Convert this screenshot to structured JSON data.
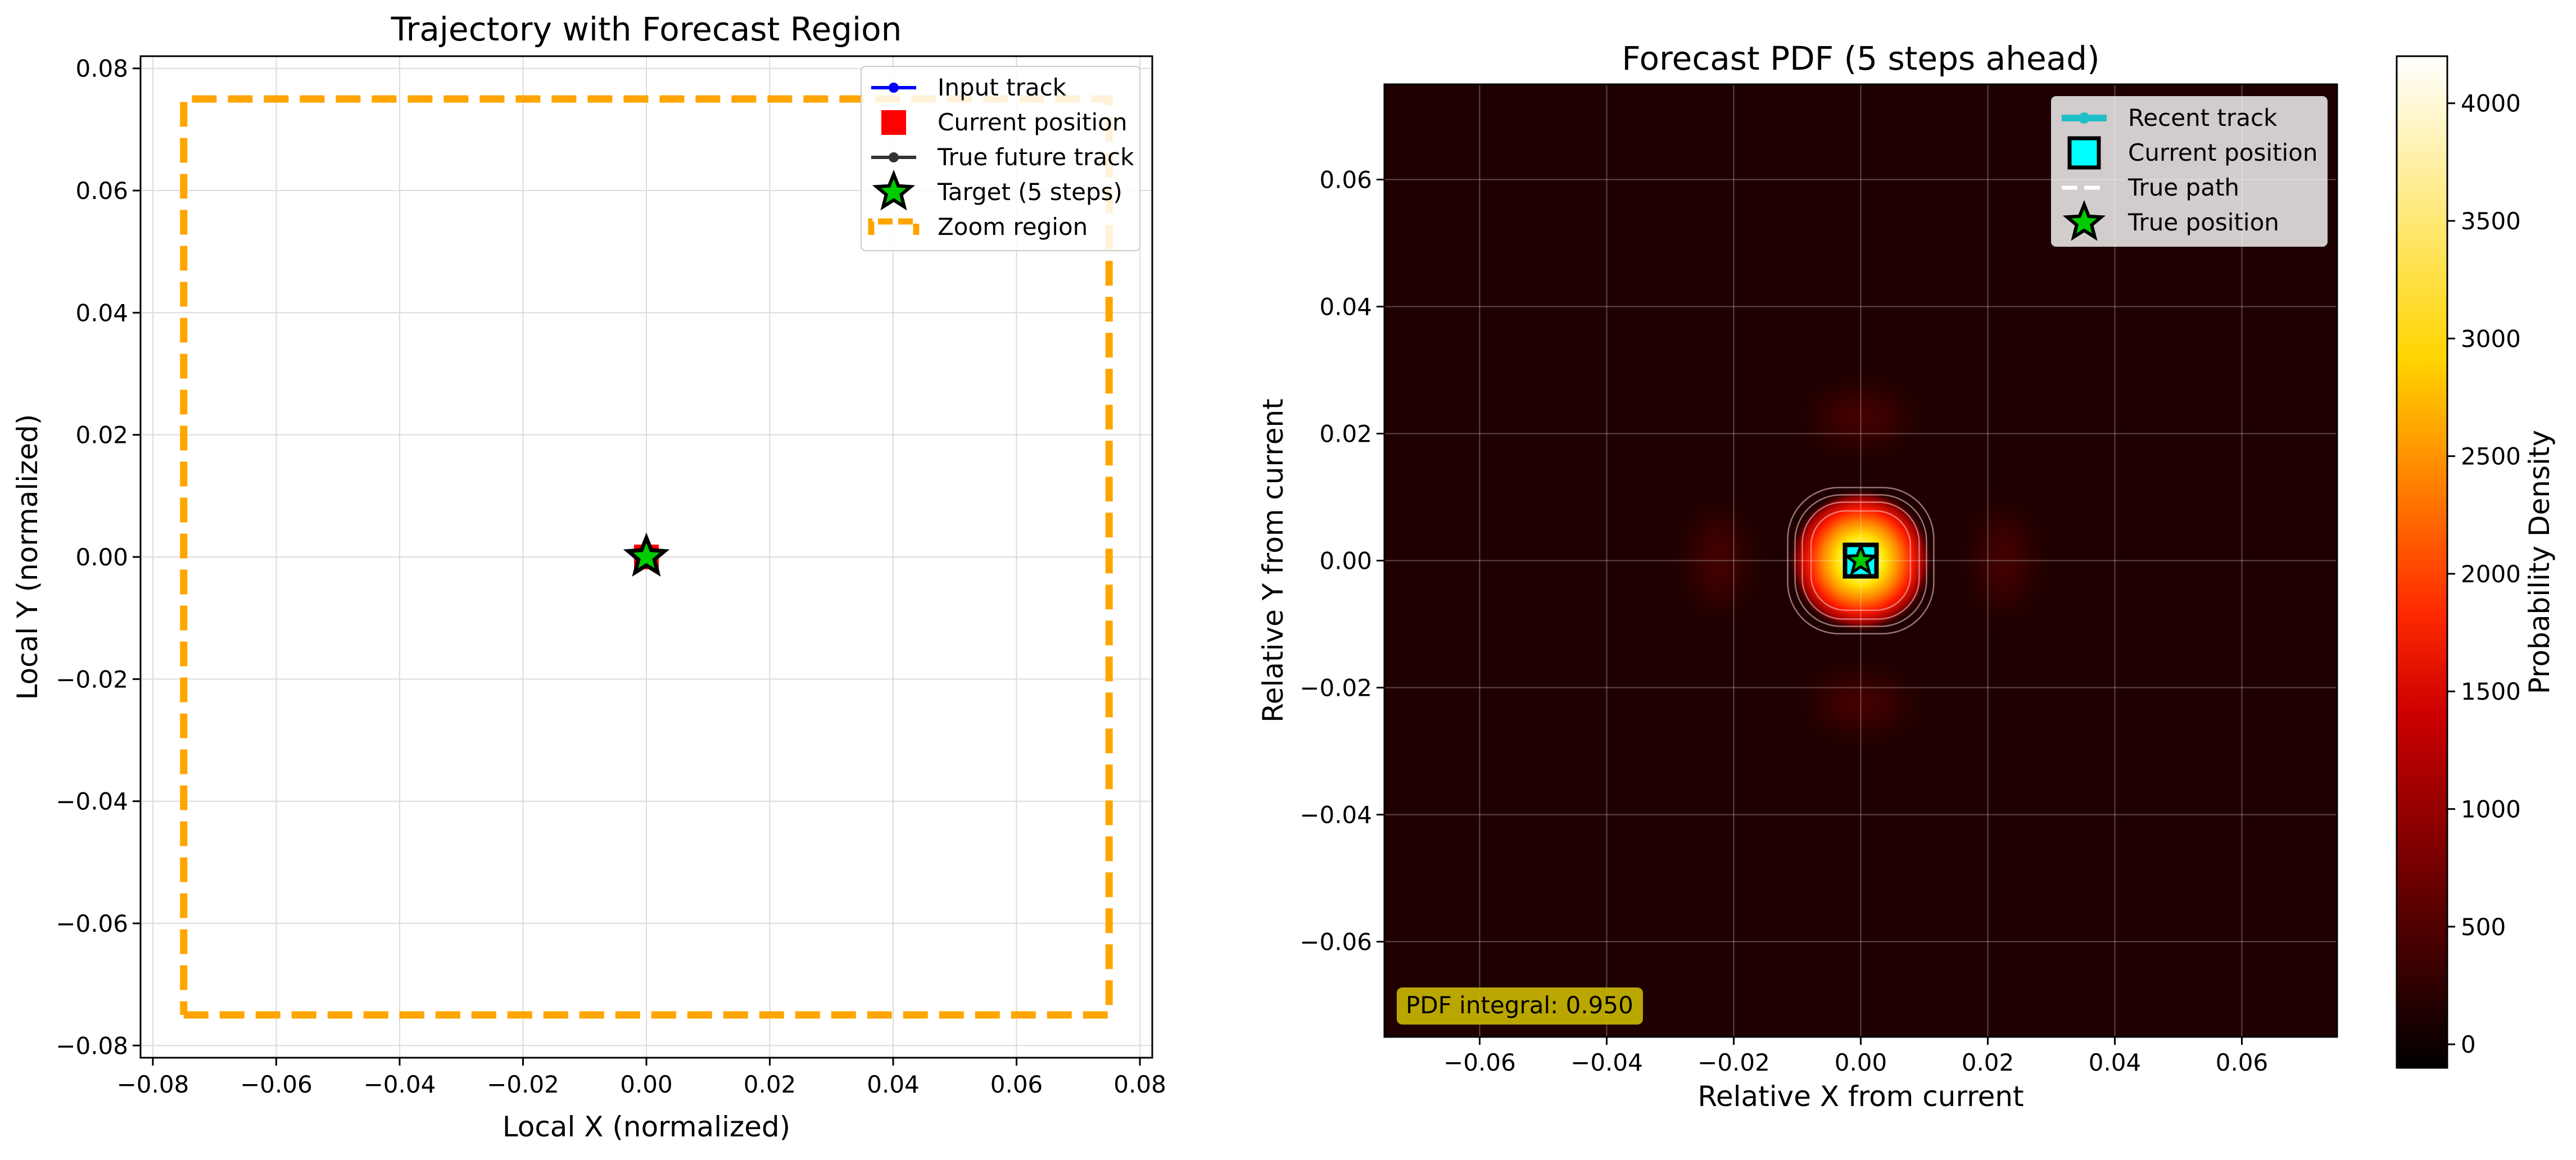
{
  "chart_data": [
    {
      "type": "line",
      "title": "Trajectory with Forecast Region",
      "xlabel": "Local X (normalized)",
      "ylabel": "Local Y (normalized)",
      "xlim": [
        -0.082,
        0.082
      ],
      "ylim": [
        -0.082,
        0.082
      ],
      "xticks": [
        -0.08,
        -0.06,
        -0.04,
        -0.02,
        0.0,
        0.02,
        0.04,
        0.06,
        0.08
      ],
      "yticks": [
        -0.08,
        -0.06,
        -0.04,
        -0.02,
        0.0,
        0.02,
        0.04,
        0.06,
        0.08
      ],
      "xtick_labels": [
        "−0.08",
        "−0.06",
        "−0.04",
        "−0.02",
        "0.00",
        "0.02",
        "0.04",
        "0.06",
        "0.08"
      ],
      "ytick_labels": [
        "−0.08",
        "−0.06",
        "−0.04",
        "−0.02",
        "0.00",
        "0.02",
        "0.04",
        "0.06",
        "0.08"
      ],
      "grid": true,
      "legend_position": "top-right",
      "series": [
        {
          "name": "Input track",
          "color": "#0000ff",
          "x": [
            0.0,
            0.0
          ],
          "y": [
            0.0,
            0.0
          ],
          "marker": "circle"
        },
        {
          "name": "Current position",
          "color": "#ff0000",
          "x": [
            0.0
          ],
          "y": [
            0.0
          ],
          "marker": "square"
        },
        {
          "name": "True future track",
          "color": "#333333",
          "x": [
            0.0,
            0.0
          ],
          "y": [
            0.0,
            0.0
          ],
          "marker": "circle"
        },
        {
          "name": "Target (5 steps)",
          "color": "#00cc00",
          "x": [
            0.0
          ],
          "y": [
            0.0
          ],
          "marker": "star"
        },
        {
          "name": "Zoom region",
          "color": "#ffa500",
          "x": [
            -0.075,
            0.075,
            0.075,
            -0.075,
            -0.075
          ],
          "y": [
            -0.075,
            -0.075,
            0.075,
            0.075,
            -0.075
          ],
          "style": "dashed"
        }
      ]
    },
    {
      "type": "heatmap",
      "title": "Forecast PDF (5 steps ahead)",
      "xlabel": "Relative X from current",
      "ylabel": "Relative Y from current",
      "xlim": [
        -0.075,
        0.075
      ],
      "ylim": [
        -0.075,
        0.075
      ],
      "xticks": [
        -0.06,
        -0.04,
        -0.02,
        0.0,
        0.02,
        0.04,
        0.06
      ],
      "yticks": [
        -0.06,
        -0.04,
        -0.02,
        0.0,
        0.02,
        0.04,
        0.06
      ],
      "xtick_labels": [
        "−0.06",
        "−0.04",
        "−0.02",
        "0.00",
        "0.02",
        "0.04",
        "0.06"
      ],
      "ytick_labels": [
        "−0.06",
        "−0.04",
        "−0.02",
        "0.00",
        "0.02",
        "0.04",
        "0.06"
      ],
      "grid": true,
      "legend_position": "top-right",
      "colormap": "hot",
      "peak_center": [
        0.0,
        0.0
      ],
      "colorbar": {
        "label": "Probability Density",
        "min": -100,
        "max": 4200,
        "ticks": [
          0,
          500,
          1000,
          1500,
          2000,
          2500,
          3000,
          3500,
          4000
        ],
        "tick_labels": [
          "0",
          "500",
          "1000",
          "1500",
          "2000",
          "2500",
          "3000",
          "3500",
          "4000"
        ]
      },
      "annotation": "PDF integral: 0.950",
      "series": [
        {
          "name": "Recent track",
          "color": "#20c0c8",
          "x": [
            0.0
          ],
          "y": [
            0.0
          ],
          "marker": "circle"
        },
        {
          "name": "Current position",
          "color": "#00ffff",
          "x": [
            0.0
          ],
          "y": [
            0.0
          ],
          "marker": "square"
        },
        {
          "name": "True path",
          "color": "#ffffff",
          "x": [
            0.0
          ],
          "y": [
            0.0
          ],
          "style": "dashed"
        },
        {
          "name": "True position",
          "color": "#00cc00",
          "x": [
            0.0
          ],
          "y": [
            0.0
          ],
          "marker": "star"
        }
      ]
    }
  ]
}
